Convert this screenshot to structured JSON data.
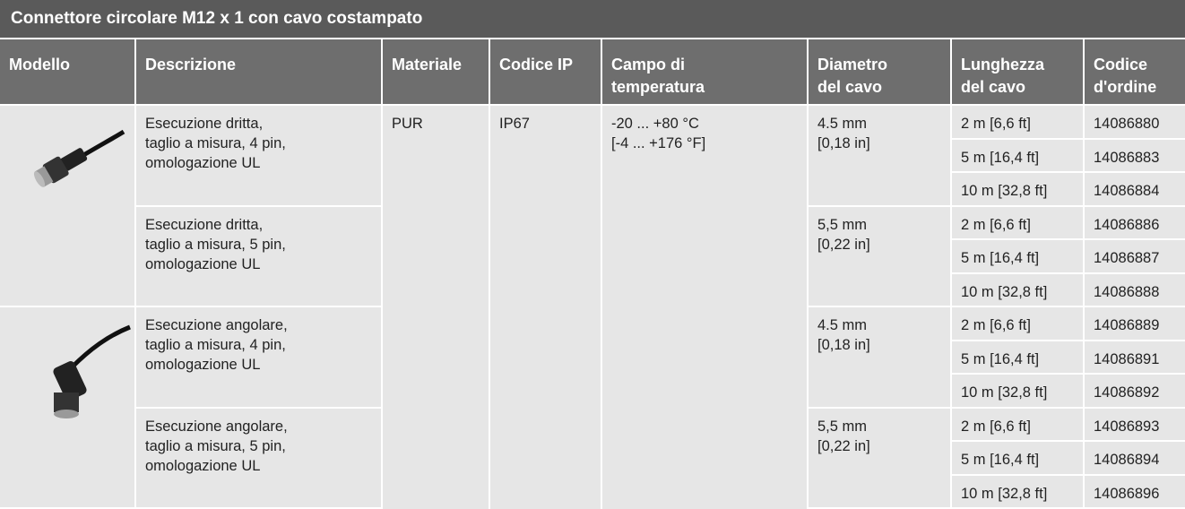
{
  "title": "Connettore circolare M12 x 1 con cavo costampato",
  "columns": [
    [
      "Modello"
    ],
    [
      "Descrizione"
    ],
    [
      "Materiale"
    ],
    [
      "Codice IP"
    ],
    [
      "Campo di",
      "temperatura"
    ],
    [
      "Diametro",
      "del cavo"
    ],
    [
      "Lunghezza",
      "del cavo"
    ],
    [
      "Codice",
      "d'ordine"
    ]
  ],
  "material": "PUR",
  "ip": "IP67",
  "temperature": [
    "-20 ... +80 °C",
    "[-4 ... +176 °F]"
  ],
  "rows": [
    {
      "description": [
        "Esecuzione dritta,",
        "taglio a misura, 4 pin,",
        "omologazione UL"
      ],
      "diameter": [
        "4.5 mm",
        "[0,18 in]"
      ],
      "variants": [
        {
          "length": "2 m [6,6 ft]",
          "code": "14086880"
        },
        {
          "length": "5 m [16,4 ft]",
          "code": "14086883"
        },
        {
          "length": "10 m [32,8 ft]",
          "code": "14086884"
        }
      ]
    },
    {
      "description": [
        "Esecuzione dritta,",
        "taglio a misura, 5 pin,",
        "omologazione UL"
      ],
      "diameter": [
        "5,5 mm",
        "[0,22 in]"
      ],
      "variants": [
        {
          "length": "2 m [6,6 ft]",
          "code": "14086886"
        },
        {
          "length": "5 m [16,4 ft]",
          "code": "14086887"
        },
        {
          "length": "10 m [32,8 ft]",
          "code": "14086888"
        }
      ]
    },
    {
      "description": [
        "Esecuzione angolare,",
        "taglio a misura, 4 pin,",
        "omologazione UL"
      ],
      "diameter": [
        "4.5 mm",
        "[0,18 in]"
      ],
      "variants": [
        {
          "length": "2 m [6,6 ft]",
          "code": "14086889"
        },
        {
          "length": "5 m [16,4 ft]",
          "code": "14086891"
        },
        {
          "length": "10 m [32,8 ft]",
          "code": "14086892"
        }
      ]
    },
    {
      "description": [
        "Esecuzione angolare,",
        "taglio a misura, 5 pin,",
        "omologazione UL"
      ],
      "diameter": [
        "5,5 mm",
        "[0,22 in]"
      ],
      "variants": [
        {
          "length": "2 m [6,6 ft]",
          "code": "14086893"
        },
        {
          "length": "5 m [16,4 ft]",
          "code": "14086894"
        },
        {
          "length": "10 m [32,8 ft]",
          "code": "14086896"
        }
      ]
    }
  ]
}
